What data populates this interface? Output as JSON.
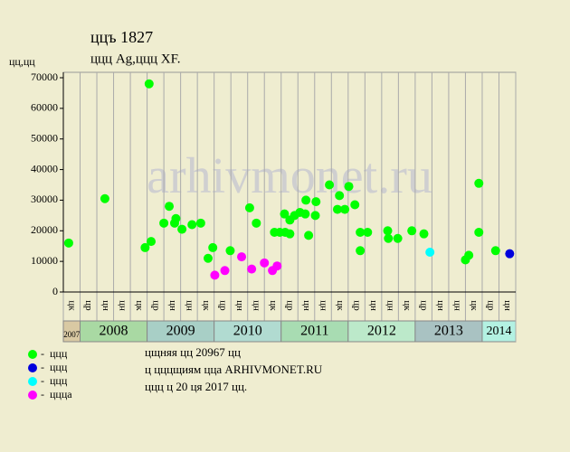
{
  "chart_data": {
    "type": "scatter",
    "title": "ццъ 1827",
    "subtitle": "ццц Ag,ццц XF.",
    "ylabel": "цц,цц",
    "watermark": "arhivmonet.ru",
    "xlim": [
      2007.75,
      2014.5
    ],
    "ylim": [
      0,
      70000
    ],
    "yticks": [
      0,
      10000,
      20000,
      30000,
      40000,
      50000,
      60000,
      70000
    ],
    "x_groups": [
      {
        "label": "2007",
        "color": "#d9c9a3",
        "quarters": [
          "цк"
        ]
      },
      {
        "label": "2008",
        "color": "#a9d9a3",
        "quarters": [
          "цр",
          "цн",
          "цн",
          "цк"
        ]
      },
      {
        "label": "2009",
        "color": "#a8cfc6",
        "quarters": [
          "цр",
          "цн",
          "цн",
          "цк"
        ]
      },
      {
        "label": "2010",
        "color": "#b1dbd1",
        "quarters": [
          "цр",
          "цн",
          "цн",
          "цк"
        ]
      },
      {
        "label": "2011",
        "color": "#a8dcb2",
        "quarters": [
          "цр",
          "цн",
          "цн",
          "цк"
        ]
      },
      {
        "label": "2012",
        "color": "#bce9ca",
        "quarters": [
          "цр",
          "цн",
          "цн",
          "цк"
        ]
      },
      {
        "label": "2013",
        "color": "#a9c2c2",
        "quarters": [
          "цр",
          "цн",
          "цн",
          "цк"
        ]
      },
      {
        "label": "2014",
        "color": "#b3f1e2",
        "quarters": [
          "цр",
          "цн"
        ]
      }
    ],
    "series": [
      {
        "name": "ццц",
        "color": "#00ff00",
        "x": [
          2007.83,
          2008.37,
          2009.03,
          2008.97,
          2009.06,
          2009.25,
          2009.33,
          2009.43,
          2009.41,
          2009.52,
          2009.67,
          2009.8,
          2009.91,
          2009.98,
          2010.24,
          2010.53,
          2010.63,
          2010.9,
          2010.98,
          2011.06,
          2011.13,
          2011.05,
          2011.13,
          2011.2,
          2011.28,
          2011.36,
          2011.37,
          2011.41,
          2011.52,
          2011.51,
          2011.72,
          2011.87,
          2011.84,
          2011.95,
          2012.01,
          2012.1,
          2012.18,
          2012.18,
          2012.29,
          2012.59,
          2012.6,
          2012.74,
          2012.95,
          2013.13,
          2013.75,
          2013.8,
          2013.95,
          2013.95,
          2014.2
        ],
        "values": [
          16000,
          30500,
          68000,
          14500,
          16500,
          22500,
          28000,
          24000,
          22500,
          20500,
          22000,
          22500,
          11000,
          14500,
          13500,
          27500,
          22500,
          19500,
          19500,
          19500,
          19000,
          25500,
          23500,
          25000,
          26000,
          25500,
          30000,
          18500,
          29500,
          25000,
          35000,
          31500,
          27000,
          27000,
          34500,
          28500,
          19500,
          13500,
          19500,
          20000,
          17500,
          17500,
          20000,
          19000,
          10500,
          12000,
          35500,
          19500,
          13500
        ]
      },
      {
        "name": "ццц",
        "color": "#0000dd",
        "x": [
          2014.41
        ],
        "values": [
          12500
        ]
      },
      {
        "name": "ццц",
        "color": "#00ffff",
        "x": [
          2013.22
        ],
        "values": [
          13000
        ]
      },
      {
        "name": "ццца",
        "color": "#ff00ff",
        "x": [
          2010.01,
          2010.16,
          2010.41,
          2010.56,
          2010.75,
          2010.87,
          2010.94
        ],
        "values": [
          5500,
          7000,
          11500,
          7500,
          9500,
          7000,
          8500
        ]
      }
    ],
    "notes": [
      "цщняя цц 20967 цц",
      "ц цццщиям цца ARHIVMONET.RU",
      "ццц ц 20 ця 2017 цц."
    ]
  }
}
